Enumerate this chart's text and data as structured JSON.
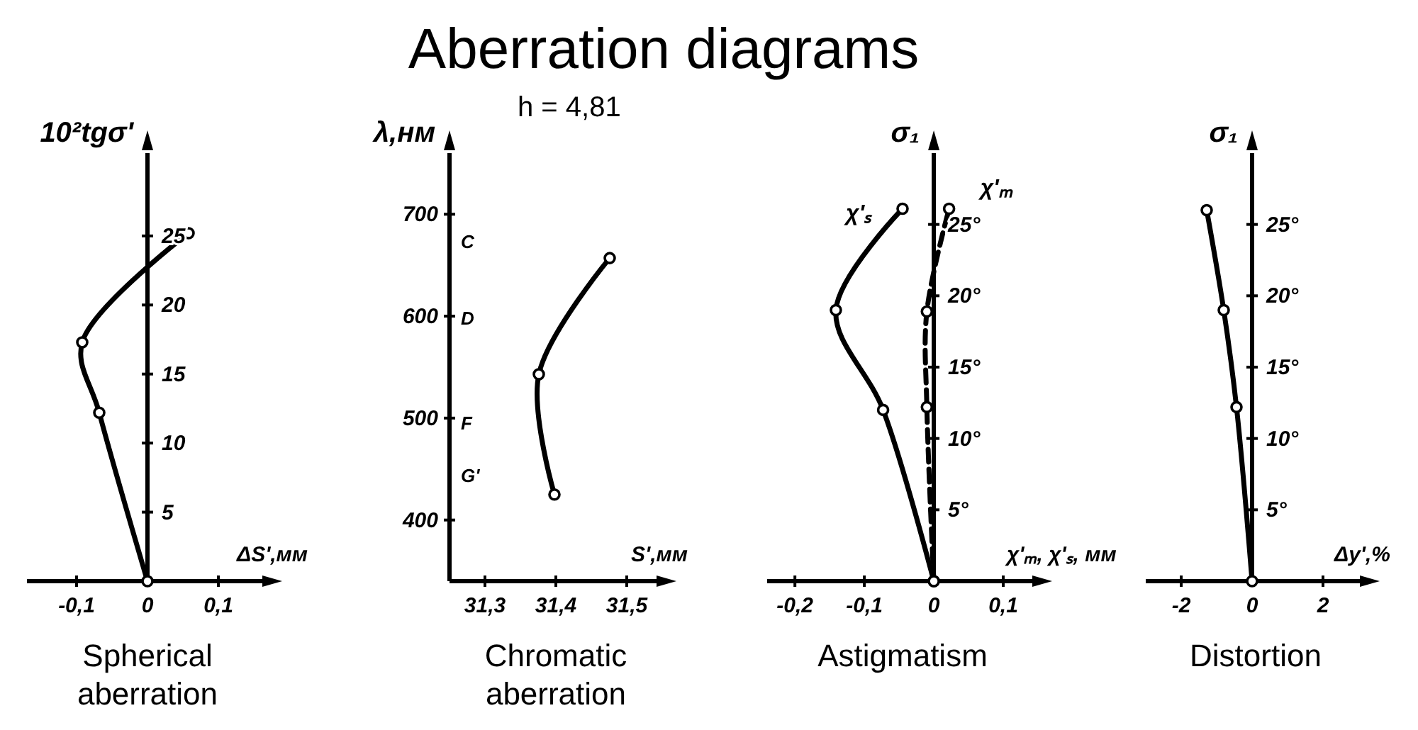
{
  "chart_data": [
    {
      "type": "line",
      "title": "Spherical aberration",
      "xlabel": "ΔS',мм",
      "ylabel": "10²tgσ'",
      "annotations": [
        "Aberration diagrams"
      ],
      "marker": "circle",
      "xlim": [
        -0.17,
        0.17
      ],
      "ylim": [
        0,
        31
      ],
      "xticks": [
        {
          "value": -0.1,
          "label": "-0,1"
        },
        0,
        {
          "value": 0.1,
          "label": "0,1"
        }
      ],
      "yticks": [
        5,
        10,
        15,
        20,
        25
      ],
      "x": [
        0,
        -0.068,
        -0.092,
        0.058
      ],
      "series": [
        {
          "color": "#000000",
          "values": [
            0,
            12.2,
            17.3,
            25.2
          ]
        }
      ]
    },
    {
      "type": "line",
      "title": "Chromatic aberration",
      "xlabel": "S',мм",
      "ylabel": "λ,нм",
      "annotations": [
        "h = 4,81",
        "C",
        "D",
        "F",
        "G'"
      ],
      "marker": "circle",
      "xlim": [
        31.25,
        31.55
      ],
      "ylim": [
        340,
        760
      ],
      "xticks": [
        {
          "value": 31.3,
          "label": "31,3"
        },
        {
          "value": 31.4,
          "label": "31,4"
        },
        {
          "value": 31.5,
          "label": "31,5"
        }
      ],
      "yticks": [
        400,
        500,
        600,
        700
      ],
      "x": [
        31.398,
        31.376,
        31.476
      ],
      "series": [
        {
          "color": "#000000",
          "values": [
            425,
            543,
            657
          ]
        }
      ]
    },
    {
      "type": "line",
      "title": "Astigmatism",
      "xlabel": "χ'ₘ, χ'ₛ, мм",
      "ylabel": "σ₁",
      "marker": "circle",
      "xlim": [
        -0.24,
        0.15
      ],
      "ylim": [
        0,
        30
      ],
      "xticks": [
        {
          "value": -0.2,
          "label": "-0,2"
        },
        {
          "value": -0.1,
          "label": "-0,1"
        },
        0,
        {
          "value": 0.1,
          "label": "0,1"
        }
      ],
      "yticks": [
        {
          "value": 5,
          "label": "5°"
        },
        {
          "value": 10,
          "label": "10°"
        },
        {
          "value": 15,
          "label": "15°"
        },
        {
          "value": 20,
          "label": "20°"
        },
        {
          "value": 25,
          "label": "25°"
        }
      ],
      "series": [
        {
          "name": "χ'ₛ",
          "color": "#000000",
          "x": [
            0,
            -0.073,
            -0.141,
            -0.045
          ],
          "values": [
            0,
            12,
            19,
            26.1
          ]
        },
        {
          "name": "χ'ₘ",
          "color": "#000000",
          "line_style": "dashed",
          "x": [
            0,
            -0.01,
            -0.01,
            0.022
          ],
          "values": [
            0,
            12.2,
            18.9,
            26.1
          ]
        }
      ]
    },
    {
      "type": "line",
      "title": "Distortion",
      "xlabel": "Δy',%",
      "ylabel": "σ₁",
      "marker": "circle",
      "xlim": [
        -3,
        3.2
      ],
      "ylim": [
        0,
        30
      ],
      "xticks": [
        -2,
        0,
        2
      ],
      "yticks": [
        {
          "value": 5,
          "label": "5°"
        },
        {
          "value": 10,
          "label": "10°"
        },
        {
          "value": 15,
          "label": "15°"
        },
        {
          "value": 20,
          "label": "20°"
        },
        {
          "value": 25,
          "label": "25°"
        }
      ],
      "x": [
        0,
        -0.44,
        -0.8,
        -1.28
      ],
      "series": [
        {
          "color": "#000000",
          "values": [
            0,
            12.2,
            19,
            26
          ]
        }
      ]
    }
  ]
}
